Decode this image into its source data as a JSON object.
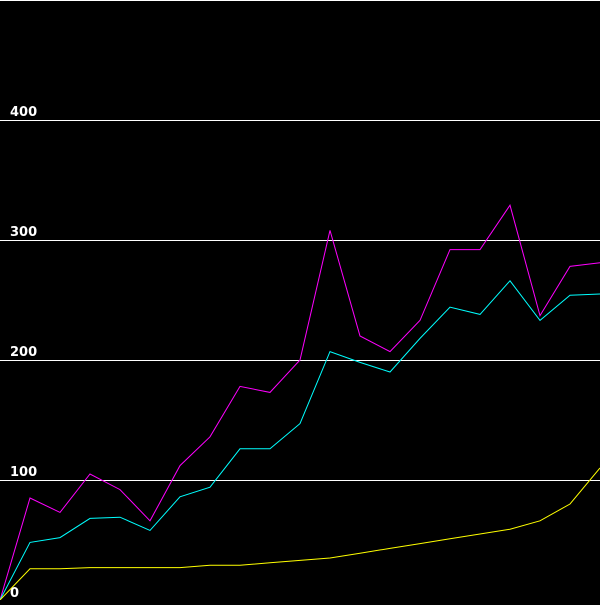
{
  "chart_data": {
    "type": "line",
    "background": "#000000",
    "grid": true,
    "grid_color": "#ffffff",
    "tick_color": "#ffffff",
    "ylim": [
      0,
      500
    ],
    "yticks": [
      0,
      100,
      200,
      300,
      400
    ],
    "ytick_labels": [
      "0",
      "100",
      "200",
      "300",
      "400"
    ],
    "x": [
      0,
      1,
      2,
      3,
      4,
      5,
      6,
      7,
      8,
      9,
      10,
      11,
      12,
      13,
      14,
      15,
      16,
      17,
      18,
      19,
      20
    ],
    "series": [
      {
        "color": "#ff00ff",
        "values": [
          0,
          85,
          73,
          105,
          92,
          66,
          112,
          136,
          178,
          173,
          200,
          308,
          220,
          207,
          233,
          292,
          292,
          329,
          237,
          278,
          281
        ]
      },
      {
        "color": "#00ffff",
        "values": [
          0,
          48,
          52,
          68,
          69,
          58,
          86,
          94,
          126,
          126,
          147,
          207,
          198,
          190,
          218,
          244,
          238,
          266,
          233,
          254,
          255
        ]
      },
      {
        "color": "#ffff00",
        "values": [
          0,
          26,
          26,
          27,
          27,
          27,
          27,
          29,
          29,
          31,
          33,
          35,
          39,
          43,
          47,
          51,
          55,
          59,
          66,
          80,
          110
        ]
      }
    ]
  }
}
